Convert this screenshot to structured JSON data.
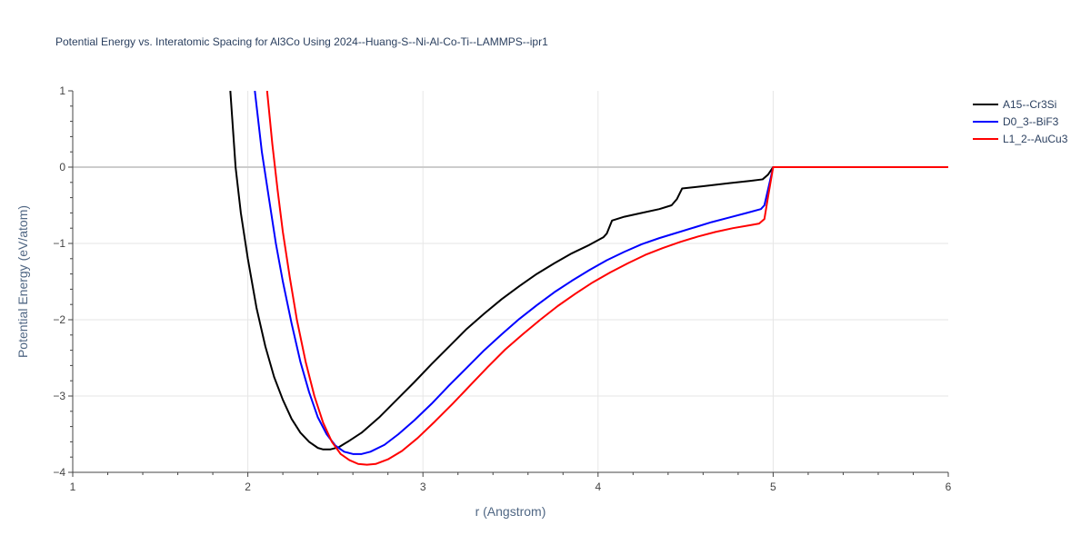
{
  "chart_data": {
    "type": "line",
    "title": "Potential Energy vs. Interatomic Spacing for Al3Co Using 2024--Huang-S--Ni-Al-Co-Ti--LAMMPS--ipr1",
    "xlabel": "r (Angstrom)",
    "ylabel": "Potential Energy (eV/atom)",
    "xlim": [
      1,
      6
    ],
    "ylim": [
      -4,
      1
    ],
    "x_ticks": [
      "1",
      "2",
      "3",
      "4",
      "5",
      "6"
    ],
    "y_ticks": [
      "−4",
      "−3",
      "−2",
      "−1",
      "0",
      "1"
    ],
    "x_tick_values": [
      1,
      2,
      3,
      4,
      5,
      6
    ],
    "y_tick_values": [
      -4,
      -3,
      -2,
      -1,
      0,
      1
    ],
    "grid": true,
    "legend_position": "top-right",
    "series": [
      {
        "name": "A15--Cr3Si",
        "color": "#000000",
        "points": [
          [
            1.9,
            1.0
          ],
          [
            1.93,
            0.0
          ],
          [
            1.96,
            -0.6
          ],
          [
            2.0,
            -1.2
          ],
          [
            2.05,
            -1.85
          ],
          [
            2.1,
            -2.35
          ],
          [
            2.15,
            -2.75
          ],
          [
            2.2,
            -3.05
          ],
          [
            2.25,
            -3.3
          ],
          [
            2.3,
            -3.48
          ],
          [
            2.35,
            -3.6
          ],
          [
            2.4,
            -3.68
          ],
          [
            2.43,
            -3.7
          ],
          [
            2.47,
            -3.7
          ],
          [
            2.52,
            -3.67
          ],
          [
            2.57,
            -3.6
          ],
          [
            2.65,
            -3.48
          ],
          [
            2.75,
            -3.28
          ],
          [
            2.85,
            -3.05
          ],
          [
            2.95,
            -2.82
          ],
          [
            3.05,
            -2.58
          ],
          [
            3.15,
            -2.35
          ],
          [
            3.25,
            -2.12
          ],
          [
            3.35,
            -1.92
          ],
          [
            3.45,
            -1.73
          ],
          [
            3.55,
            -1.56
          ],
          [
            3.65,
            -1.4
          ],
          [
            3.75,
            -1.26
          ],
          [
            3.85,
            -1.13
          ],
          [
            3.95,
            -1.02
          ],
          [
            4.03,
            -0.92
          ],
          [
            4.05,
            -0.87
          ],
          [
            4.08,
            -0.7
          ],
          [
            4.15,
            -0.65
          ],
          [
            4.25,
            -0.6
          ],
          [
            4.35,
            -0.55
          ],
          [
            4.42,
            -0.5
          ],
          [
            4.45,
            -0.42
          ],
          [
            4.48,
            -0.28
          ],
          [
            4.6,
            -0.25
          ],
          [
            4.75,
            -0.21
          ],
          [
            4.87,
            -0.18
          ],
          [
            4.94,
            -0.16
          ],
          [
            4.97,
            -0.1
          ],
          [
            5.0,
            0.0
          ],
          [
            6.0,
            0.0
          ]
        ]
      },
      {
        "name": "D0_3--BiF3",
        "color": "#0000ff",
        "points": [
          [
            2.04,
            1.0
          ],
          [
            2.08,
            0.2
          ],
          [
            2.12,
            -0.4
          ],
          [
            2.16,
            -1.0
          ],
          [
            2.2,
            -1.5
          ],
          [
            2.25,
            -2.05
          ],
          [
            2.3,
            -2.55
          ],
          [
            2.35,
            -2.95
          ],
          [
            2.4,
            -3.28
          ],
          [
            2.45,
            -3.5
          ],
          [
            2.5,
            -3.65
          ],
          [
            2.55,
            -3.73
          ],
          [
            2.6,
            -3.76
          ],
          [
            2.65,
            -3.76
          ],
          [
            2.7,
            -3.73
          ],
          [
            2.78,
            -3.64
          ],
          [
            2.86,
            -3.5
          ],
          [
            2.95,
            -3.32
          ],
          [
            3.05,
            -3.1
          ],
          [
            3.15,
            -2.86
          ],
          [
            3.25,
            -2.63
          ],
          [
            3.35,
            -2.4
          ],
          [
            3.45,
            -2.19
          ],
          [
            3.55,
            -1.99
          ],
          [
            3.65,
            -1.81
          ],
          [
            3.75,
            -1.64
          ],
          [
            3.85,
            -1.49
          ],
          [
            3.95,
            -1.35
          ],
          [
            4.05,
            -1.22
          ],
          [
            4.15,
            -1.11
          ],
          [
            4.25,
            -1.01
          ],
          [
            4.35,
            -0.93
          ],
          [
            4.45,
            -0.86
          ],
          [
            4.55,
            -0.79
          ],
          [
            4.65,
            -0.72
          ],
          [
            4.75,
            -0.66
          ],
          [
            4.85,
            -0.6
          ],
          [
            4.93,
            -0.55
          ],
          [
            4.95,
            -0.5
          ],
          [
            4.97,
            -0.3
          ],
          [
            5.0,
            0.0
          ],
          [
            6.0,
            0.0
          ]
        ]
      },
      {
        "name": "L1_2--AuCu3",
        "color": "#ff0000",
        "points": [
          [
            2.11,
            1.0
          ],
          [
            2.14,
            0.3
          ],
          [
            2.17,
            -0.3
          ],
          [
            2.2,
            -0.85
          ],
          [
            2.24,
            -1.45
          ],
          [
            2.28,
            -2.0
          ],
          [
            2.33,
            -2.55
          ],
          [
            2.38,
            -3.0
          ],
          [
            2.43,
            -3.35
          ],
          [
            2.48,
            -3.6
          ],
          [
            2.53,
            -3.76
          ],
          [
            2.58,
            -3.84
          ],
          [
            2.63,
            -3.89
          ],
          [
            2.68,
            -3.9
          ],
          [
            2.73,
            -3.89
          ],
          [
            2.8,
            -3.83
          ],
          [
            2.88,
            -3.72
          ],
          [
            2.97,
            -3.55
          ],
          [
            3.07,
            -3.33
          ],
          [
            3.17,
            -3.1
          ],
          [
            3.27,
            -2.86
          ],
          [
            3.37,
            -2.62
          ],
          [
            3.47,
            -2.39
          ],
          [
            3.57,
            -2.19
          ],
          [
            3.67,
            -2.0
          ],
          [
            3.77,
            -1.82
          ],
          [
            3.87,
            -1.66
          ],
          [
            3.97,
            -1.51
          ],
          [
            4.07,
            -1.38
          ],
          [
            4.17,
            -1.26
          ],
          [
            4.27,
            -1.15
          ],
          [
            4.37,
            -1.06
          ],
          [
            4.47,
            -0.98
          ],
          [
            4.57,
            -0.91
          ],
          [
            4.67,
            -0.85
          ],
          [
            4.77,
            -0.8
          ],
          [
            4.87,
            -0.76
          ],
          [
            4.92,
            -0.74
          ],
          [
            4.95,
            -0.68
          ],
          [
            4.97,
            -0.4
          ],
          [
            5.0,
            0.0
          ],
          [
            6.0,
            0.0
          ]
        ]
      }
    ]
  }
}
